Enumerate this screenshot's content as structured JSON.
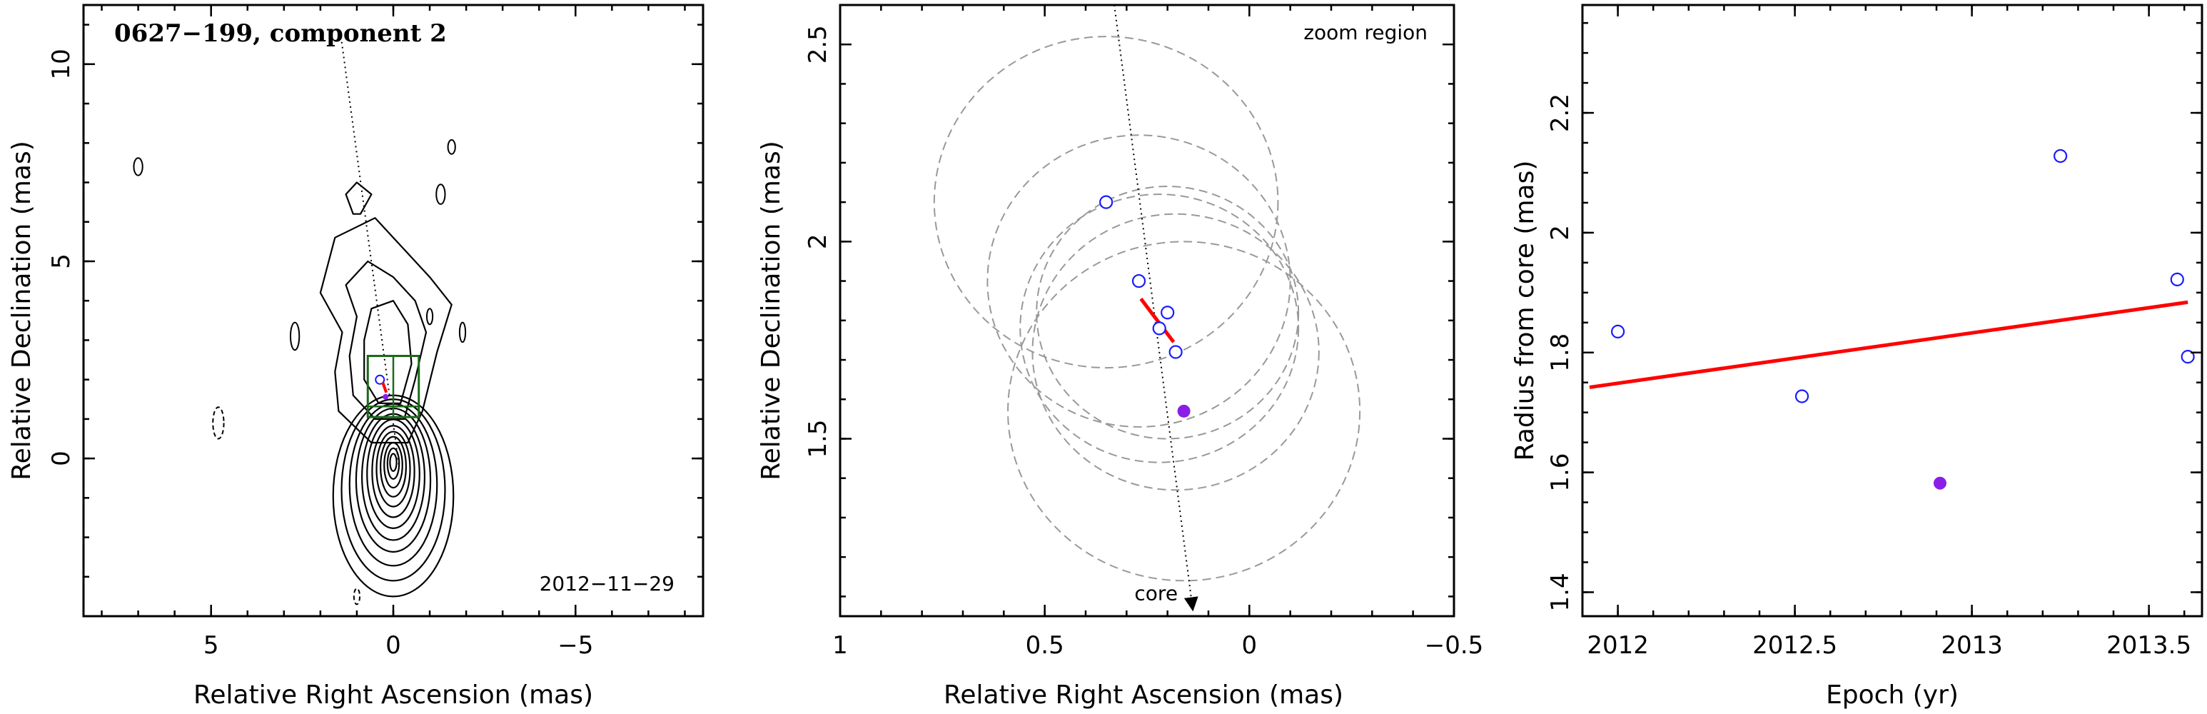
{
  "chart_data": [
    {
      "type": "contour",
      "title": "0627−199, component 2",
      "date_label": "2012−11−29",
      "xlabel": "Relative Right Ascension (mas)",
      "ylabel": "Relative Declination (mas)",
      "xlim": [
        8.5,
        -8.5
      ],
      "ylim": [
        -4.0,
        11.5
      ],
      "xticks": [
        5,
        0,
        -5
      ],
      "xtick_labels": [
        "5",
        "0",
        "−5"
      ],
      "yticks": [
        0,
        5,
        10
      ],
      "ytick_labels": [
        "0",
        "5",
        "10"
      ],
      "jet_axis": {
        "from": [
          -0.15,
          -0.15
        ],
        "to": [
          1.45,
          10.8
        ]
      },
      "zoom_box": {
        "x": [
          0.7,
          -0.7
        ],
        "y": [
          1.05,
          2.6
        ]
      },
      "component_marker_position": [
        0.25,
        1.78
      ],
      "colors": {
        "box": "#1a6a1a",
        "detection": "#1a1aff",
        "fit": "#ff0000",
        "special": "#8a1ee6",
        "circle": "#999999"
      }
    },
    {
      "type": "scatter",
      "annotation": "zoom region",
      "core_label": "core",
      "xlabel": "Relative Right Ascension (mas)",
      "ylabel": "Relative Declination (mas)",
      "xlim": [
        1.0,
        -0.5
      ],
      "ylim": [
        1.05,
        2.6
      ],
      "xticks": [
        1,
        0.5,
        0,
        -0.5
      ],
      "xtick_labels": [
        "1",
        "0.5",
        "0",
        "−0.5"
      ],
      "yticks": [
        1.5,
        2,
        2.5
      ],
      "ytick_labels": [
        "1.5",
        "2",
        "2.5"
      ],
      "open_points": [
        {
          "x": 0.35,
          "y": 2.1
        },
        {
          "x": 0.27,
          "y": 1.9
        },
        {
          "x": 0.2,
          "y": 1.82
        },
        {
          "x": 0.22,
          "y": 1.78
        },
        {
          "x": 0.18,
          "y": 1.72
        }
      ],
      "filled_points": [
        {
          "x": 0.16,
          "y": 1.57
        }
      ],
      "circles": [
        {
          "x": 0.35,
          "y": 2.1,
          "r": 0.42
        },
        {
          "x": 0.27,
          "y": 1.9,
          "r": 0.37
        },
        {
          "x": 0.2,
          "y": 1.82,
          "r": 0.32
        },
        {
          "x": 0.22,
          "y": 1.78,
          "r": 0.34
        },
        {
          "x": 0.18,
          "y": 1.72,
          "r": 0.35
        },
        {
          "x": 0.16,
          "y": 1.57,
          "r": 0.43
        }
      ],
      "fit_line": {
        "x": [
          0.265,
          0.185
        ],
        "y": [
          1.855,
          1.745
        ]
      },
      "jet_axis": {
        "x": [
          0.33,
          0.14
        ],
        "y": [
          2.6,
          1.08
        ]
      }
    },
    {
      "type": "scatter",
      "xlabel": "Epoch (yr)",
      "ylabel": "Radius from core (mas)",
      "xlim": [
        2011.9,
        2013.65
      ],
      "ylim": [
        1.36,
        2.38
      ],
      "xticks": [
        2012,
        2012.5,
        2013,
        2013.5
      ],
      "xtick_labels": [
        "2012",
        "2012.5",
        "2013",
        "2013.5"
      ],
      "yticks": [
        1.4,
        1.6,
        1.8,
        2,
        2.2
      ],
      "ytick_labels": [
        "1.4",
        "1.6",
        "1.8",
        "2",
        "2.2"
      ],
      "open_points": [
        {
          "x": 2012.0,
          "y": 1.835
        },
        {
          "x": 2012.52,
          "y": 1.727
        },
        {
          "x": 2013.25,
          "y": 2.128
        },
        {
          "x": 2013.58,
          "y": 1.922
        },
        {
          "x": 2013.61,
          "y": 1.793
        }
      ],
      "filled_points": [
        {
          "x": 2012.91,
          "y": 1.582
        }
      ],
      "fit_line": {
        "x": [
          2011.92,
          2013.61
        ],
        "y": [
          1.742,
          1.884
        ]
      }
    }
  ]
}
